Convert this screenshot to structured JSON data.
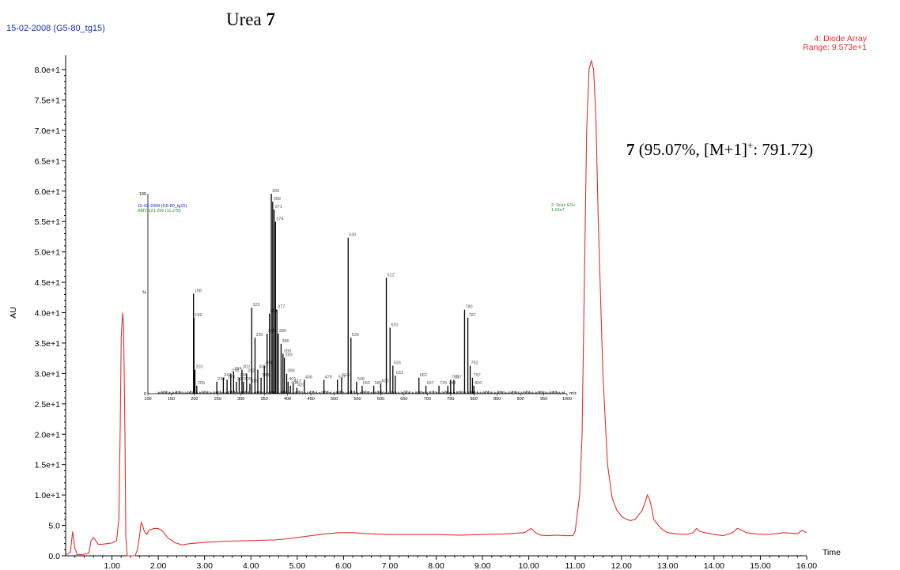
{
  "header": {
    "run_label": "15-02-2008 (G5-80_tg15)",
    "title_prefix": "Urea ",
    "title_bold": "7",
    "detector_line1": "4: Diode Array",
    "detector_line2": "Range: 9.573e+1"
  },
  "annotation": {
    "bold": "7",
    "text_a": " (95.07%, [M+1]",
    "sup": "+",
    "text_b": ": 791.72)"
  },
  "colors": {
    "trace": "#e03030",
    "axis": "#000000",
    "spectrum": "#000000",
    "run_label": "#1a2fb0",
    "ms_label": "#2a8a2a"
  },
  "chart_data": [
    {
      "type": "line",
      "xlabel": "Time",
      "ylabel": "AU",
      "xlim": [
        0.0,
        16.0
      ],
      "ylim": [
        0.0,
        80.0
      ],
      "x_ticks": [
        "1.00",
        "2.00",
        "3.00",
        "4.00",
        "5.00",
        "6.00",
        "7.00",
        "8.00",
        "9.00",
        "10.00",
        "11.00",
        "12.00",
        "13.00",
        "14.00",
        "15.00",
        "16.00"
      ],
      "y_ticks": [
        "0.0",
        "5.0",
        "1.0e+1",
        "1.5e+1",
        "2.0e+1",
        "2.5e+1",
        "3.0e+1",
        "3.5e+1",
        "4.0e+1",
        "4.5e+1",
        "5.0e+1",
        "5.5e+1",
        "6.0e+1",
        "6.5e+1",
        "7.0e+1",
        "7.5e+1",
        "8.0e+1"
      ],
      "series": [
        {
          "x": [
            0.0,
            0.1,
            0.15,
            0.2,
            0.25,
            0.35,
            0.5,
            0.55,
            0.6,
            0.65,
            0.7,
            0.8,
            0.9,
            1.0,
            1.1,
            1.15,
            1.18,
            1.2,
            1.23,
            1.25,
            1.28,
            1.3,
            1.33,
            1.36,
            1.4,
            1.5,
            1.55,
            1.6,
            1.63,
            1.66,
            1.7,
            1.75,
            1.8,
            1.9,
            2.0,
            2.1,
            2.2,
            2.35,
            2.5,
            2.7,
            3.0,
            3.5,
            4.0,
            4.5,
            4.8,
            5.0,
            5.3,
            5.6,
            5.9,
            6.2,
            6.6,
            7.0,
            7.5,
            8.0,
            8.5,
            9.0,
            9.5,
            9.9,
            10.05,
            10.15,
            10.25,
            10.4,
            10.6,
            10.8,
            10.95,
            11.0,
            11.1,
            11.15,
            11.2,
            11.25,
            11.3,
            11.35,
            11.4,
            11.45,
            11.5,
            11.6,
            11.7,
            11.8,
            11.9,
            12.0,
            12.1,
            12.2,
            12.3,
            12.38,
            12.45,
            12.52,
            12.56,
            12.6,
            12.65,
            12.7,
            12.8,
            12.9,
            13.0,
            13.2,
            13.4,
            13.55,
            13.62,
            13.7,
            13.8,
            14.0,
            14.2,
            14.4,
            14.5,
            14.6,
            14.7,
            14.9,
            15.1,
            15.3,
            15.5,
            15.7,
            15.8,
            15.9,
            16.0
          ],
          "y": [
            0.2,
            0.5,
            4.0,
            1.2,
            0.2,
            0.2,
            0.4,
            2.5,
            3.0,
            2.5,
            1.9,
            1.9,
            2.0,
            2.1,
            2.5,
            6.0,
            22.0,
            36.0,
            40.0,
            38.0,
            20.0,
            3.0,
            0.0,
            0.0,
            0.0,
            0.0,
            1.0,
            3.5,
            5.5,
            5.0,
            4.0,
            3.5,
            4.2,
            4.5,
            4.5,
            4.0,
            3.0,
            2.2,
            1.8,
            2.0,
            2.2,
            2.4,
            2.5,
            2.6,
            2.8,
            3.0,
            3.3,
            3.6,
            3.8,
            3.8,
            3.6,
            3.5,
            3.5,
            3.5,
            3.4,
            3.5,
            3.6,
            3.8,
            4.5,
            3.8,
            3.4,
            3.3,
            3.4,
            3.3,
            3.3,
            4.0,
            10.0,
            20.0,
            45.0,
            70.0,
            80.0,
            81.5,
            80.0,
            72.0,
            55.0,
            30.0,
            15.0,
            9.5,
            7.5,
            6.5,
            6.0,
            5.8,
            6.0,
            6.8,
            7.5,
            9.0,
            10.0,
            9.5,
            8.0,
            6.0,
            5.0,
            4.2,
            3.8,
            3.6,
            3.5,
            3.8,
            4.5,
            4.0,
            3.8,
            3.5,
            3.3,
            3.8,
            4.5,
            4.2,
            3.8,
            3.6,
            3.5,
            3.6,
            3.8,
            3.7,
            3.6,
            4.2,
            3.8
          ]
        }
      ]
    },
    {
      "type": "bar",
      "header_line1": "15-02-2008 (G5-80_tg15)",
      "header_line2": "AMV 121 256 (11.278)",
      "detector_line1": "2: Scan ES+",
      "detector_line2": "1.63e7",
      "y_tick_top": "100",
      "y_tick_mid": "%",
      "y_tick_bottom": "0",
      "xlabel": "m/z",
      "xlim": [
        100,
        1000
      ],
      "ylim": [
        0,
        100
      ],
      "x_ticks": [
        "100",
        "150",
        "200",
        "250",
        "300",
        "350",
        "400",
        "450",
        "500",
        "550",
        "600",
        "650",
        "700",
        "750",
        "800",
        "850",
        "900",
        "950",
        "1000"
      ],
      "mz": [
        198,
        199,
        201,
        205,
        248,
        262,
        270,
        278,
        284,
        290,
        296,
        302,
        305,
        312,
        319,
        323,
        330,
        336,
        343,
        350,
        356,
        361,
        365,
        368,
        371,
        374,
        377,
        380,
        386,
        390,
        393,
        398,
        401,
        406,
        412,
        420,
        436,
        478,
        507,
        516,
        530,
        536,
        548,
        560,
        585,
        600,
        612,
        620,
        626,
        631,
        682,
        697,
        725,
        744,
        750,
        757,
        780,
        787,
        792,
        797,
        800
      ],
      "intensity": [
        50,
        38,
        12,
        4,
        6,
        8,
        7,
        10,
        11,
        6,
        8,
        12,
        6,
        10,
        5,
        43,
        28,
        12,
        8,
        14,
        30,
        40,
        100,
        96,
        92,
        86,
        42,
        30,
        25,
        20,
        18,
        10,
        6,
        4,
        5,
        3,
        7,
        7,
        7,
        8,
        78,
        28,
        6,
        4,
        4,
        5,
        58,
        33,
        14,
        9,
        8,
        4,
        4,
        4,
        7,
        7,
        42,
        38,
        14,
        8,
        4
      ],
      "peak_labels": [
        "198",
        "199",
        "201",
        "205",
        "248",
        "262",
        "270",
        "278",
        "284",
        "290",
        "296",
        "302",
        "305",
        "312",
        "319",
        "323",
        "330",
        "336",
        "343",
        "350",
        "356",
        "361",
        "365",
        "368",
        "371",
        "374",
        "377",
        "380",
        "386",
        "390",
        "393",
        "398",
        "401",
        "406",
        "412",
        "420",
        "436",
        "478",
        "507",
        "516",
        "530",
        "536",
        "548",
        "560",
        "585",
        "600",
        "612",
        "620",
        "626",
        "631",
        "682",
        "697",
        "725",
        "744",
        "750",
        "757",
        "780",
        "787",
        "792",
        "797",
        "800"
      ]
    }
  ]
}
